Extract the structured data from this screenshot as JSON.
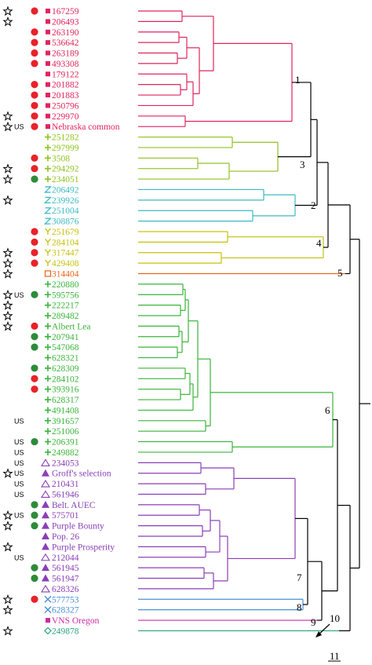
{
  "leaves": [
    {
      "label": "167259",
      "marker": "square",
      "group": 1,
      "star": true,
      "dot": "red",
      "us": false
    },
    {
      "label": "206493",
      "marker": "square",
      "group": 1,
      "star": true,
      "dot": null,
      "us": false
    },
    {
      "label": "263190",
      "marker": "square",
      "group": 1,
      "star": false,
      "dot": "red",
      "us": false
    },
    {
      "label": "536642",
      "marker": "square",
      "group": 1,
      "star": false,
      "dot": "red",
      "us": false
    },
    {
      "label": "263189",
      "marker": "square",
      "group": 1,
      "star": false,
      "dot": "red",
      "us": false
    },
    {
      "label": "493308",
      "marker": "square",
      "group": 1,
      "star": false,
      "dot": "red",
      "us": false
    },
    {
      "label": "179122",
      "marker": "square",
      "group": 1,
      "star": false,
      "dot": null,
      "us": false
    },
    {
      "label": "201882",
      "marker": "square",
      "group": 1,
      "star": false,
      "dot": "red",
      "us": false
    },
    {
      "label": "201883",
      "marker": "square",
      "group": 1,
      "star": false,
      "dot": "red",
      "us": false
    },
    {
      "label": "250796",
      "marker": "square",
      "group": 1,
      "star": false,
      "dot": "red",
      "us": false
    },
    {
      "label": "229970",
      "marker": "square",
      "group": 1,
      "star": true,
      "dot": "red",
      "us": false
    },
    {
      "label": "Nebraska common",
      "marker": "square",
      "group": 1,
      "star": true,
      "dot": "red",
      "us": true
    },
    {
      "label": "251282",
      "marker": "plus",
      "group": 3,
      "star": false,
      "dot": null,
      "us": false
    },
    {
      "label": "297999",
      "marker": "plus",
      "group": 3,
      "star": false,
      "dot": null,
      "us": false
    },
    {
      "label": "3508",
      "marker": "plus",
      "group": 3,
      "star": false,
      "dot": "red",
      "us": false
    },
    {
      "label": "294292",
      "marker": "plus",
      "group": 3,
      "star": true,
      "dot": "red",
      "us": false
    },
    {
      "label": "234051",
      "marker": "plus",
      "group": 3,
      "star": true,
      "dot": "green",
      "us": false
    },
    {
      "label": "206492",
      "marker": "zee",
      "group": 2,
      "star": false,
      "dot": null,
      "us": false
    },
    {
      "label": "239926",
      "marker": "zee",
      "group": 2,
      "star": true,
      "dot": null,
      "us": false
    },
    {
      "label": "251004",
      "marker": "zee",
      "group": 2,
      "star": false,
      "dot": null,
      "us": false
    },
    {
      "label": "308876",
      "marker": "zee",
      "group": 2,
      "star": false,
      "dot": null,
      "us": false
    },
    {
      "label": "251679",
      "marker": "wye",
      "group": 4,
      "star": false,
      "dot": "red",
      "us": false
    },
    {
      "label": "284104",
      "marker": "wye",
      "group": 4,
      "star": false,
      "dot": "red",
      "us": false
    },
    {
      "label": "317447",
      "marker": "wye",
      "group": 4,
      "star": true,
      "dot": "red",
      "us": false
    },
    {
      "label": "429408",
      "marker": "wye",
      "group": 4,
      "star": true,
      "dot": "red",
      "us": false
    },
    {
      "label": "314404",
      "marker": "open-square",
      "group": 5,
      "star": true,
      "dot": null,
      "us": false
    },
    {
      "label": "220880",
      "marker": "plus",
      "group": 6,
      "star": false,
      "dot": null,
      "us": false
    },
    {
      "label": "595756",
      "marker": "plus",
      "group": 6,
      "star": true,
      "dot": "green",
      "us": true
    },
    {
      "label": "222217",
      "marker": "plus",
      "group": 6,
      "star": true,
      "dot": null,
      "us": false
    },
    {
      "label": "289482",
      "marker": "plus",
      "group": 6,
      "star": true,
      "dot": null,
      "us": false
    },
    {
      "label": "Albert Lea",
      "marker": "plus",
      "group": 6,
      "star": true,
      "dot": "red",
      "us": false
    },
    {
      "label": "207941",
      "marker": "plus",
      "group": 6,
      "star": false,
      "dot": "green",
      "us": false
    },
    {
      "label": "547068",
      "marker": "plus",
      "group": 6,
      "star": false,
      "dot": "green",
      "us": false
    },
    {
      "label": "628321",
      "marker": "plus",
      "group": 6,
      "star": false,
      "dot": null,
      "us": false
    },
    {
      "label": "628309",
      "marker": "plus",
      "group": 6,
      "star": false,
      "dot": "green",
      "us": false
    },
    {
      "label": "284102",
      "marker": "plus",
      "group": 6,
      "star": false,
      "dot": "red",
      "us": false
    },
    {
      "label": "393916",
      "marker": "plus",
      "group": 6,
      "star": false,
      "dot": "red",
      "us": false
    },
    {
      "label": "628317",
      "marker": "plus",
      "group": 6,
      "star": false,
      "dot": null,
      "us": false
    },
    {
      "label": "491408",
      "marker": "plus",
      "group": 6,
      "star": false,
      "dot": null,
      "us": false
    },
    {
      "label": "391657",
      "marker": "plus",
      "group": 6,
      "star": false,
      "dot": null,
      "us": true
    },
    {
      "label": "251006",
      "marker": "plus",
      "group": 6,
      "star": false,
      "dot": null,
      "us": false
    },
    {
      "label": "206391",
      "marker": "plus",
      "group": 6,
      "star": false,
      "dot": "green",
      "us": true
    },
    {
      "label": "249882",
      "marker": "plus",
      "group": 6,
      "star": false,
      "dot": null,
      "us": true
    },
    {
      "label": "234053",
      "marker": "open-triangle",
      "group": 7,
      "star": false,
      "dot": null,
      "us": true
    },
    {
      "label": "Groff's selection",
      "marker": "triangle",
      "group": 7,
      "star": true,
      "dot": null,
      "us": true
    },
    {
      "label": "210431",
      "marker": "open-triangle",
      "group": 7,
      "star": false,
      "dot": null,
      "us": true
    },
    {
      "label": "561946",
      "marker": "open-triangle",
      "group": 7,
      "star": false,
      "dot": null,
      "us": true
    },
    {
      "label": "Belt. AUEC",
      "marker": "triangle",
      "group": 7,
      "star": false,
      "dot": "green",
      "us": false
    },
    {
      "label": "575701",
      "marker": "triangle",
      "group": 7,
      "star": true,
      "dot": "green",
      "us": true
    },
    {
      "label": "Purple Bounty",
      "marker": "triangle",
      "group": 7,
      "star": true,
      "dot": "green",
      "us": false
    },
    {
      "label": "Pop. 26",
      "marker": "triangle",
      "group": 7,
      "star": false,
      "dot": null,
      "us": false
    },
    {
      "label": "Purple Prosperity",
      "marker": "triangle",
      "group": 7,
      "star": true,
      "dot": null,
      "us": false
    },
    {
      "label": "212044",
      "marker": "open-triangle",
      "group": 7,
      "star": false,
      "dot": null,
      "us": true
    },
    {
      "label": "561945",
      "marker": "triangle",
      "group": 7,
      "star": false,
      "dot": "green",
      "us": false
    },
    {
      "label": "561947",
      "marker": "triangle",
      "group": 7,
      "star": false,
      "dot": "green",
      "us": false
    },
    {
      "label": "628326",
      "marker": "open-triangle",
      "group": 7,
      "star": false,
      "dot": null,
      "us": false
    },
    {
      "label": "577753",
      "marker": "cross",
      "group": 8,
      "star": true,
      "dot": "red",
      "us": false
    },
    {
      "label": "628327",
      "marker": "cross",
      "group": 8,
      "star": true,
      "dot": null,
      "us": false
    },
    {
      "label": "VNS Oregon",
      "marker": "square",
      "group": 9,
      "star": false,
      "dot": null,
      "us": false
    },
    {
      "label": "249878",
      "marker": "diamond",
      "group": 11,
      "star": true,
      "dot": null,
      "us": false
    }
  ],
  "us_tag": "US",
  "cluster_numbers": [
    "1",
    "2",
    "3",
    "4",
    "5",
    "6",
    "7",
    "8",
    "9",
    "10",
    "11"
  ],
  "colors": {
    "group_1": "#e0245e",
    "group_3": "#8fc21f",
    "group_2": "#3cb9c3",
    "group_4": "#c6c00c",
    "group_5": "#e8661c",
    "group_6": "#3ab53a",
    "group_7": "#8a3fb8",
    "group_8": "#4a8fd8",
    "group_9": "#c82aa8",
    "group_11": "#2aa57a",
    "backbone": "#000000",
    "red_dot": "#e8222a",
    "green_dot": "#2e8b3a"
  }
}
